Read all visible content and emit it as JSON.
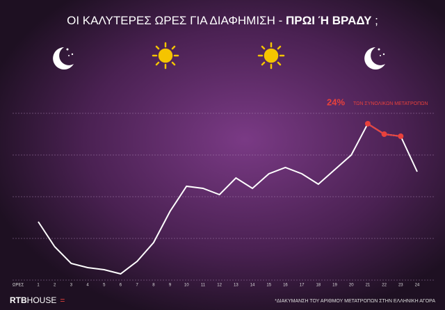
{
  "chart_data": {
    "type": "line",
    "title": "ΟΙ ΚΑΛΥΤΕΡΕΣ ΩΡΕΣ ΓΙΑ ΔΙΑΦΗΜΙΣΗ - ",
    "title_bold": "ΠΡΩΙ Ή ΒΡΑΔΥ",
    "title_end": " ;",
    "x_label": "ΩΡΕΣ",
    "x": [
      1,
      2,
      3,
      4,
      5,
      6,
      7,
      8,
      9,
      10,
      11,
      12,
      13,
      14,
      15,
      16,
      17,
      18,
      19,
      20,
      21,
      22,
      23,
      24
    ],
    "xlim": [
      1,
      24
    ],
    "xticks": [
      1,
      2,
      3,
      4,
      5,
      6,
      7,
      8,
      9,
      10,
      11,
      12,
      13,
      14,
      15,
      16,
      17,
      18,
      19,
      20,
      21,
      22,
      23,
      24
    ],
    "values": [
      28,
      16,
      8,
      6,
      5,
      3,
      9,
      18,
      33,
      45,
      44,
      41,
      49,
      44,
      51,
      54,
      51,
      46,
      53,
      60,
      75,
      70,
      69,
      52
    ],
    "color": "#ffffff",
    "highlight": {
      "color": "#e8413c",
      "from": 21,
      "to": 23
    },
    "ylim": [
      0,
      100
    ],
    "ygrid": [
      20,
      40,
      60,
      80
    ],
    "annotation": {
      "value": "24%",
      "text": "ΤΩΝ ΣΥΝΟΛΙΚΩΝ ΜΕΤΑΤΡΟΠΩΝ"
    },
    "logo": {
      "bold": "RTB",
      "light": "HOUSE",
      "mark": "="
    },
    "footnote": "*ΔΙΑΚΥΜΑΝΣΗ ΤΟΥ ΑΡΙΘΜΟΥ ΜΕΤΑΤΡΟΠΩΝ ΣΤΗΝ ΕΛΛΗΝΙΚΗ ΑΓΟΡΑ"
  }
}
